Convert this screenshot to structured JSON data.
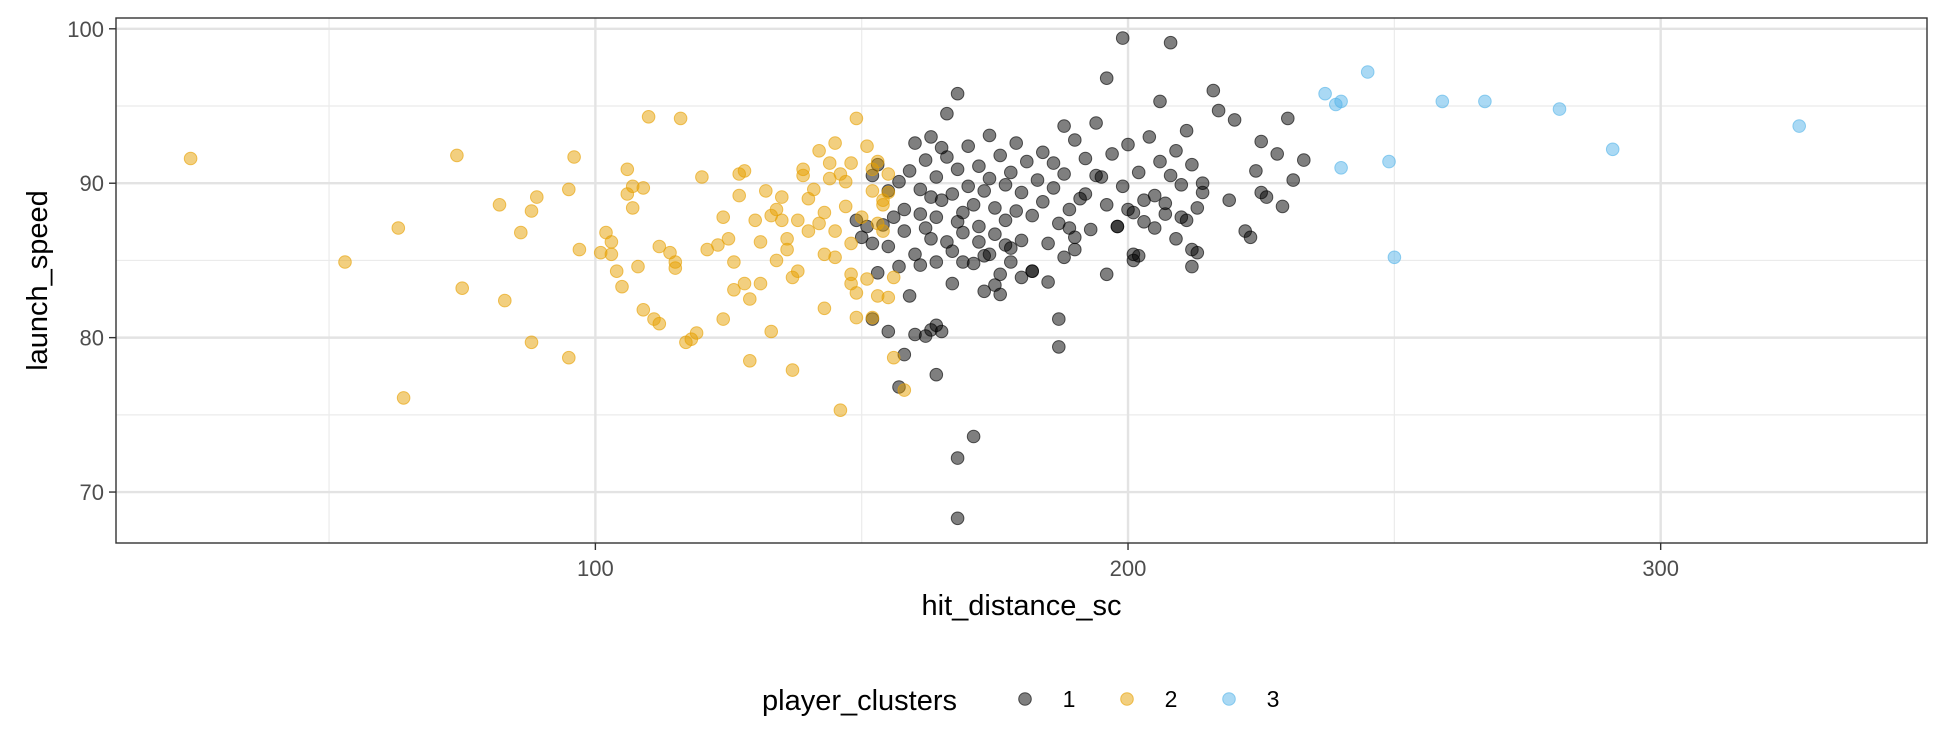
{
  "chart_data": {
    "type": "scatter",
    "title": "",
    "xlabel": "hit_distance_sc",
    "ylabel": "launch_speed",
    "xlim": [
      10,
      350
    ],
    "ylim": [
      66.7,
      100.7
    ],
    "x_ticks": [
      100,
      200,
      300
    ],
    "y_ticks": [
      70,
      80,
      90,
      100
    ],
    "x_tick_labels": [
      "100",
      "200",
      "300"
    ],
    "y_tick_labels": [
      "70",
      "80",
      "90",
      "100"
    ],
    "grid": true,
    "legend": {
      "title": "player_clusters",
      "position": "bottom",
      "entries": [
        "1",
        "2",
        "3"
      ]
    },
    "series": [
      {
        "name": "1",
        "color": "#000000",
        "points": [
          [
            149,
            87.6
          ],
          [
            150,
            86.5
          ],
          [
            151,
            87.2
          ],
          [
            152,
            90.5
          ],
          [
            152,
            86.1
          ],
          [
            153,
            84.2
          ],
          [
            153,
            91.2
          ],
          [
            154,
            87.3
          ],
          [
            155,
            89.5
          ],
          [
            155,
            85.9
          ],
          [
            156,
            87.8
          ],
          [
            157,
            90.1
          ],
          [
            157,
            84.6
          ],
          [
            158,
            86.9
          ],
          [
            158,
            88.3
          ],
          [
            159,
            90.8
          ],
          [
            159,
            82.7
          ],
          [
            160,
            85.4
          ],
          [
            160,
            92.6
          ],
          [
            161,
            88.0
          ],
          [
            161,
            89.6
          ],
          [
            162,
            87.1
          ],
          [
            162,
            91.5
          ],
          [
            163,
            86.4
          ],
          [
            163,
            89.1
          ],
          [
            163,
            93.0
          ],
          [
            164,
            84.9
          ],
          [
            164,
            87.8
          ],
          [
            164,
            90.4
          ],
          [
            165,
            92.3
          ],
          [
            165,
            88.9
          ],
          [
            166,
            86.2
          ],
          [
            166,
            91.7
          ],
          [
            166,
            94.5
          ],
          [
            167,
            89.3
          ],
          [
            167,
            85.6
          ],
          [
            168,
            87.5
          ],
          [
            168,
            90.9
          ],
          [
            168,
            95.8
          ],
          [
            169,
            88.1
          ],
          [
            169,
            86.8
          ],
          [
            170,
            92.4
          ],
          [
            170,
            89.8
          ],
          [
            171,
            84.8
          ],
          [
            171,
            88.6
          ],
          [
            172,
            91.1
          ],
          [
            172,
            87.2
          ],
          [
            173,
            85.3
          ],
          [
            173,
            89.5
          ],
          [
            174,
            90.3
          ],
          [
            174,
            93.1
          ],
          [
            175,
            86.7
          ],
          [
            175,
            88.4
          ],
          [
            176,
            91.8
          ],
          [
            176,
            84.1
          ],
          [
            177,
            89.9
          ],
          [
            177,
            87.6
          ],
          [
            178,
            90.7
          ],
          [
            178,
            85.8
          ],
          [
            179,
            92.6
          ],
          [
            179,
            88.2
          ],
          [
            180,
            86.3
          ],
          [
            180,
            89.4
          ],
          [
            181,
            91.4
          ],
          [
            182,
            87.9
          ],
          [
            182,
            84.3
          ],
          [
            183,
            90.2
          ],
          [
            184,
            88.8
          ],
          [
            184,
            92.0
          ],
          [
            185,
            86.1
          ],
          [
            186,
            89.7
          ],
          [
            186,
            91.3
          ],
          [
            187,
            87.4
          ],
          [
            188,
            90.6
          ],
          [
            188,
            93.7
          ],
          [
            189,
            88.3
          ],
          [
            190,
            92.8
          ],
          [
            190,
            85.7
          ],
          [
            191,
            89.0
          ],
          [
            192,
            91.6
          ],
          [
            193,
            87.0
          ],
          [
            194,
            93.9
          ],
          [
            195,
            90.4
          ],
          [
            196,
            88.6
          ],
          [
            196,
            96.8
          ],
          [
            197,
            91.9
          ],
          [
            198,
            87.2
          ],
          [
            199,
            89.8
          ],
          [
            199,
            99.4
          ],
          [
            200,
            92.5
          ],
          [
            201,
            88.1
          ],
          [
            202,
            90.7
          ],
          [
            202,
            85.3
          ],
          [
            203,
            87.5
          ],
          [
            204,
            93.0
          ],
          [
            205,
            89.2
          ],
          [
            206,
            91.4
          ],
          [
            206,
            95.3
          ],
          [
            207,
            88.0
          ],
          [
            208,
            90.5
          ],
          [
            208,
            99.1
          ],
          [
            209,
            92.1
          ],
          [
            210,
            87.8
          ],
          [
            210,
            89.9
          ],
          [
            211,
            93.4
          ],
          [
            212,
            91.2
          ],
          [
            212,
            85.7
          ],
          [
            213,
            88.4
          ],
          [
            214,
            90.0
          ],
          [
            216,
            96.0
          ],
          [
            217,
            94.7
          ],
          [
            219,
            88.9
          ],
          [
            220,
            94.1
          ],
          [
            222,
            86.9
          ],
          [
            224,
            90.8
          ],
          [
            225,
            92.7
          ],
          [
            226,
            89.1
          ],
          [
            228,
            91.9
          ],
          [
            229,
            88.5
          ],
          [
            230,
            94.2
          ],
          [
            231,
            90.2
          ],
          [
            233,
            91.5
          ],
          [
            152,
            81.2
          ],
          [
            155,
            80.4
          ],
          [
            157,
            76.8
          ],
          [
            158,
            78.9
          ],
          [
            160,
            80.2
          ],
          [
            161,
            84.7
          ],
          [
            162,
            80.1
          ],
          [
            163,
            80.5
          ],
          [
            164,
            80.8
          ],
          [
            164,
            77.6
          ],
          [
            165,
            80.4
          ],
          [
            167,
            83.5
          ],
          [
            168,
            72.2
          ],
          [
            168,
            68.3
          ],
          [
            169,
            84.9
          ],
          [
            171,
            73.6
          ],
          [
            172,
            86.2
          ],
          [
            173,
            83.0
          ],
          [
            174,
            85.4
          ],
          [
            175,
            83.4
          ],
          [
            176,
            82.8
          ],
          [
            177,
            86.0
          ],
          [
            178,
            84.9
          ],
          [
            180,
            83.9
          ],
          [
            182,
            84.3
          ],
          [
            185,
            83.6
          ],
          [
            187,
            81.2
          ],
          [
            187,
            79.4
          ],
          [
            188,
            85.2
          ],
          [
            189,
            87.1
          ],
          [
            190,
            86.5
          ],
          [
            192,
            89.3
          ],
          [
            194,
            90.5
          ],
          [
            196,
            84.1
          ],
          [
            198,
            87.2
          ],
          [
            200,
            88.3
          ],
          [
            201,
            85.4
          ],
          [
            201,
            85.0
          ],
          [
            203,
            88.9
          ],
          [
            205,
            87.1
          ],
          [
            207,
            88.7
          ],
          [
            209,
            86.4
          ],
          [
            211,
            87.6
          ],
          [
            212,
            84.6
          ],
          [
            213,
            85.5
          ],
          [
            214,
            89.4
          ],
          [
            223,
            86.5
          ],
          [
            225,
            89.4
          ]
        ]
      },
      {
        "name": "2",
        "color": "#E69F00",
        "points": [
          [
            24,
            91.6
          ],
          [
            53,
            84.9
          ],
          [
            63,
            87.1
          ],
          [
            64,
            76.1
          ],
          [
            74,
            91.8
          ],
          [
            75,
            83.2
          ],
          [
            82,
            88.6
          ],
          [
            83,
            82.4
          ],
          [
            86,
            86.8
          ],
          [
            88,
            88.2
          ],
          [
            88,
            79.7
          ],
          [
            89,
            89.1
          ],
          [
            95,
            89.6
          ],
          [
            95,
            78.7
          ],
          [
            96,
            91.7
          ],
          [
            97,
            85.7
          ],
          [
            101,
            85.5
          ],
          [
            102,
            86.8
          ],
          [
            103,
            86.2
          ],
          [
            103,
            85.4
          ],
          [
            104,
            84.3
          ],
          [
            105,
            83.3
          ],
          [
            106,
            89.3
          ],
          [
            106,
            90.9
          ],
          [
            107,
            88.4
          ],
          [
            107,
            89.8
          ],
          [
            108,
            84.6
          ],
          [
            109,
            81.8
          ],
          [
            109,
            89.7
          ],
          [
            110,
            94.3
          ],
          [
            111,
            81.2
          ],
          [
            112,
            80.9
          ],
          [
            112,
            85.9
          ],
          [
            114,
            85.5
          ],
          [
            115,
            84.5
          ],
          [
            115,
            84.9
          ],
          [
            116,
            94.2
          ],
          [
            117,
            79.7
          ],
          [
            118,
            79.9
          ],
          [
            119,
            80.3
          ],
          [
            120,
            90.4
          ],
          [
            121,
            85.7
          ],
          [
            123,
            86.0
          ],
          [
            124,
            81.2
          ],
          [
            124,
            87.8
          ],
          [
            125,
            86.4
          ],
          [
            126,
            83.1
          ],
          [
            126,
            84.9
          ],
          [
            127,
            90.6
          ],
          [
            127,
            89.2
          ],
          [
            128,
            90.8
          ],
          [
            128,
            83.5
          ],
          [
            129,
            78.5
          ],
          [
            129,
            82.5
          ],
          [
            130,
            87.6
          ],
          [
            131,
            83.5
          ],
          [
            131,
            86.2
          ],
          [
            132,
            89.5
          ],
          [
            133,
            80.4
          ],
          [
            133,
            87.9
          ],
          [
            134,
            85.0
          ],
          [
            134,
            88.3
          ],
          [
            135,
            87.6
          ],
          [
            135,
            89.1
          ],
          [
            136,
            86.4
          ],
          [
            136,
            85.7
          ],
          [
            137,
            77.9
          ],
          [
            137,
            83.9
          ],
          [
            138,
            87.6
          ],
          [
            138,
            84.3
          ],
          [
            139,
            90.5
          ],
          [
            139,
            90.9
          ],
          [
            140,
            89.0
          ],
          [
            140,
            86.9
          ],
          [
            141,
            89.6
          ],
          [
            142,
            87.4
          ],
          [
            142,
            92.1
          ],
          [
            143,
            88.1
          ],
          [
            143,
            85.4
          ],
          [
            143,
            81.9
          ],
          [
            144,
            91.3
          ],
          [
            144,
            90.3
          ],
          [
            145,
            92.6
          ],
          [
            145,
            86.9
          ],
          [
            145,
            85.2
          ],
          [
            146,
            75.3
          ],
          [
            146,
            90.6
          ],
          [
            147,
            90.1
          ],
          [
            147,
            88.5
          ],
          [
            148,
            91.3
          ],
          [
            148,
            84.1
          ],
          [
            148,
            83.5
          ],
          [
            148,
            86.1
          ],
          [
            149,
            94.2
          ],
          [
            149,
            82.9
          ],
          [
            149,
            81.3
          ],
          [
            150,
            87.8
          ],
          [
            151,
            83.8
          ],
          [
            151,
            92.4
          ],
          [
            152,
            90.9
          ],
          [
            152,
            81.3
          ],
          [
            152,
            89.5
          ],
          [
            153,
            82.7
          ],
          [
            153,
            91.4
          ],
          [
            153,
            87.4
          ],
          [
            154,
            88.6
          ],
          [
            154,
            88.9
          ],
          [
            154,
            86.9
          ],
          [
            155,
            90.6
          ],
          [
            155,
            89.4
          ],
          [
            155,
            82.6
          ],
          [
            156,
            78.7
          ],
          [
            156,
            83.9
          ],
          [
            158,
            76.6
          ]
        ]
      },
      {
        "name": "3",
        "color": "#56B4E9",
        "points": [
          [
            237,
            95.8
          ],
          [
            239,
            95.1
          ],
          [
            240,
            95.3
          ],
          [
            240,
            91.0
          ],
          [
            245,
            97.2
          ],
          [
            249,
            91.4
          ],
          [
            250,
            85.2
          ],
          [
            259,
            95.3
          ],
          [
            267,
            95.3
          ],
          [
            281,
            94.8
          ],
          [
            291,
            92.2
          ],
          [
            326,
            93.7
          ]
        ]
      }
    ]
  }
}
